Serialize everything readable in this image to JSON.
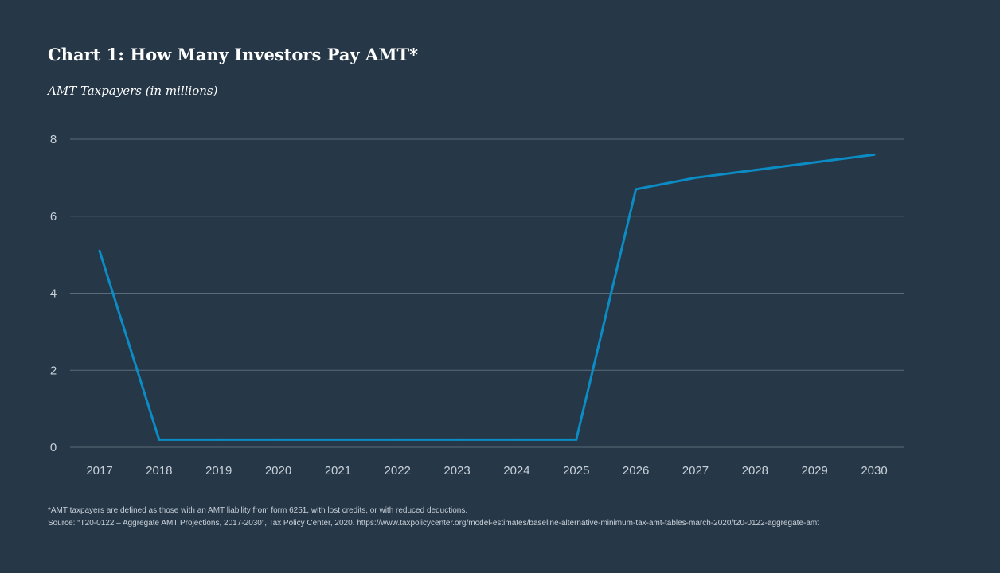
{
  "title": "Chart 1:  How Many Investors Pay AMT*",
  "subtitle": "AMT Taxpayers (in millions)",
  "footnotes": {
    "note": "*AMT taxpayers are defined as those with an AMT liability from form 6251, with lost credits, or with reduced deductions.",
    "source": "Source: “T20-0122 – Aggregate AMT Projections, 2017-2030”, Tax Policy Center, 2020. https://www.taxpolicycenter.org/model-estimates/baseline-alternative-minimum-tax-amt-tables-march-2020/t20-0122-aggregate-amt"
  },
  "colors": {
    "background": "#263747",
    "line": "#0b8cc4",
    "grid": "#5a6b7a",
    "tick_text": "#c9d1d9"
  },
  "chart_data": {
    "type": "line",
    "title": "Chart 1:  How Many Investors Pay AMT*",
    "subtitle": "AMT Taxpayers (in millions)",
    "xlabel": "",
    "ylabel": "",
    "categories": [
      "2017",
      "2018",
      "2019",
      "2020",
      "2021",
      "2022",
      "2023",
      "2024",
      "2025",
      "2026",
      "2027",
      "2028",
      "2029",
      "2030"
    ],
    "series": [
      {
        "values": [
          5.1,
          0.2,
          0.2,
          0.2,
          0.2,
          0.2,
          0.2,
          0.2,
          0.2,
          6.7,
          7.0,
          7.2,
          7.4,
          7.6
        ]
      }
    ],
    "ylim": [
      0,
      8
    ],
    "yticks": [
      "0",
      "2",
      "4",
      "6",
      "8"
    ],
    "grid": true,
    "legend": "none"
  }
}
